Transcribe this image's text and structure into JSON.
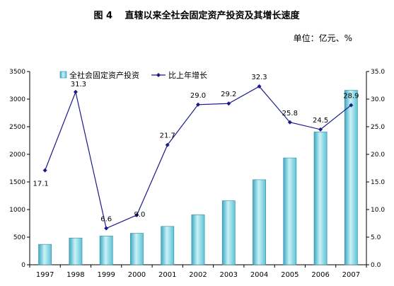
{
  "chart_data": {
    "type": "bar",
    "title": "图 4　 直辖以来全社会固定资产投资及其增长速度",
    "unit_label": "单位：亿元、%",
    "categories": [
      "1997",
      "1998",
      "1999",
      "2000",
      "2001",
      "2002",
      "2003",
      "2004",
      "2005",
      "2006",
      "2007"
    ],
    "series": [
      {
        "name": "全社会固定资产投资",
        "type": "bar",
        "axis": "left",
        "color": "#7fd8e0",
        "values": [
          370,
          485,
          520,
          570,
          695,
          905,
          1160,
          1540,
          1935,
          2405,
          3160
        ]
      },
      {
        "name": "比上年增长",
        "type": "line",
        "axis": "right",
        "color": "#1a1a8c",
        "values": [
          17.1,
          31.3,
          6.6,
          9.0,
          21.7,
          29.0,
          29.2,
          32.3,
          25.8,
          24.5,
          28.9
        ],
        "labels": [
          "17.1",
          "31.3",
          "6.6",
          "9.0",
          "21.7",
          "29.0",
          "29.2",
          "32.3",
          "25.8",
          "24.5",
          "28.9"
        ]
      }
    ],
    "y_left": {
      "min": 0,
      "max": 3500,
      "step": 500,
      "ticks": [
        "0",
        "500",
        "1000",
        "1500",
        "2000",
        "2500",
        "3000",
        "3500"
      ]
    },
    "y_right": {
      "min": 0,
      "max": 35,
      "step": 5,
      "ticks": [
        "0.0",
        "5.0",
        "10.0",
        "15.0",
        "20.0",
        "25.0",
        "30.0",
        "35.0"
      ]
    },
    "legend_position": "top-left",
    "grid": false
  }
}
